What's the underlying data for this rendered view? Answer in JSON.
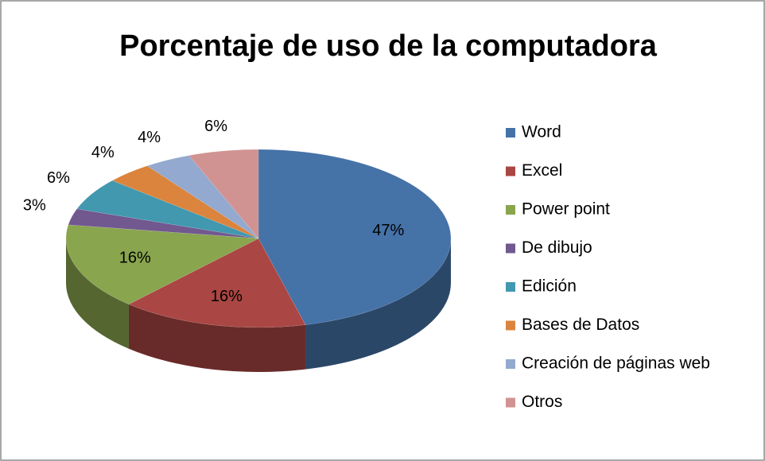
{
  "chart_data": {
    "type": "pie",
    "title": "Porcentaje de uso de la computadora",
    "categories": [
      "Word",
      "Excel",
      "Power point",
      "De dibujo",
      "Edición",
      "Bases de Datos",
      "Creación de páginas web",
      "Otros"
    ],
    "values": [
      47,
      16,
      16,
      3,
      6,
      4,
      4,
      6
    ],
    "value_labels": [
      "47%",
      "16%",
      "16%",
      "3%",
      "6%",
      "4%",
      "4%",
      "6%"
    ],
    "colors": [
      "#4572a7",
      "#aa4643",
      "#89a54e",
      "#71588f",
      "#4198af",
      "#db843d",
      "#93a9cf",
      "#d19392"
    ],
    "legend": "right"
  }
}
